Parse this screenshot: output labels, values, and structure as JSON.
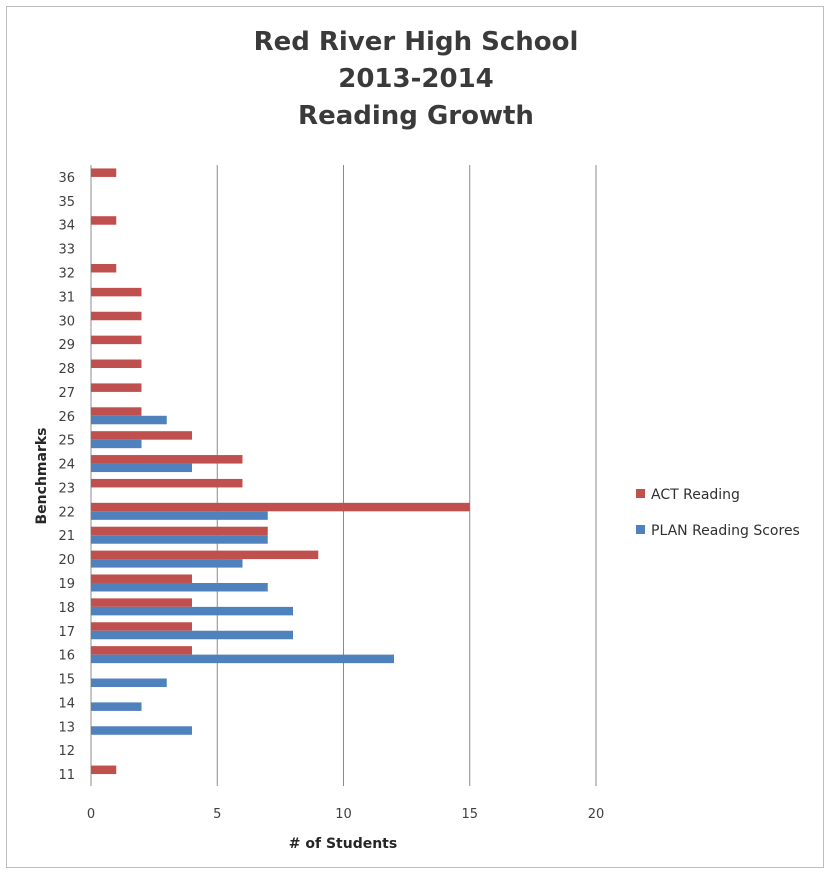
{
  "chart_data": {
    "type": "bar",
    "orientation": "horizontal",
    "title": [
      "Red River High School",
      "2013-2014",
      "Reading Growth"
    ],
    "xlabel": "# of Students",
    "ylabel": "Benchmarks",
    "xlim": [
      0,
      20
    ],
    "xticks": [
      "0",
      "5",
      "10",
      "15",
      "20"
    ],
    "grid": "vertical",
    "legend_position": "right",
    "categories": [
      "11",
      "12",
      "13",
      "14",
      "15",
      "16",
      "17",
      "18",
      "19",
      "20",
      "21",
      "22",
      "23",
      "24",
      "25",
      "26",
      "27",
      "28",
      "29",
      "30",
      "31",
      "32",
      "33",
      "34",
      "35",
      "36"
    ],
    "series": [
      {
        "name": "ACT Reading",
        "color": "#c0504d",
        "values": [
          1,
          0,
          0,
          0,
          0,
          4,
          4,
          4,
          4,
          9,
          7,
          15,
          6,
          6,
          4,
          2,
          2,
          2,
          2,
          2,
          2,
          1,
          0,
          1,
          0,
          1
        ]
      },
      {
        "name": "PLAN Reading Scores",
        "color": "#4f81bd",
        "values": [
          0,
          0,
          4,
          2,
          3,
          12,
          8,
          8,
          7,
          6,
          7,
          7,
          0,
          4,
          2,
          3,
          0,
          0,
          0,
          0,
          0,
          0,
          0,
          0,
          0,
          0
        ]
      }
    ]
  }
}
